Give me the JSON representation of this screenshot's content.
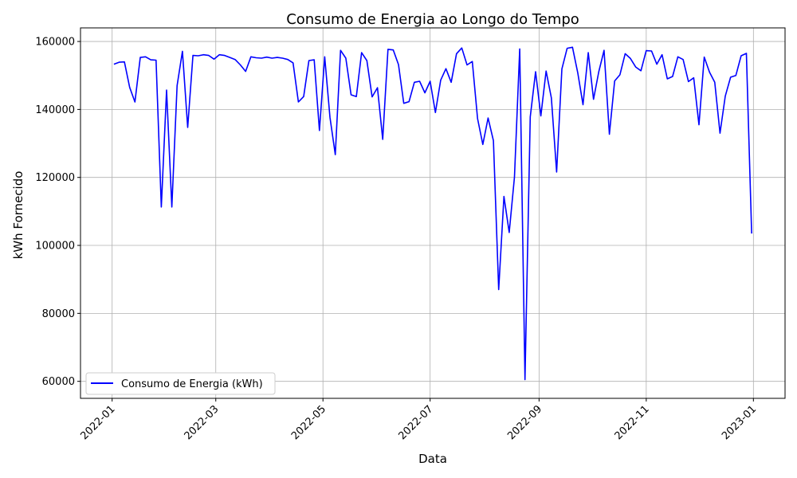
{
  "chart_data": {
    "type": "line",
    "title": "Consumo de Energia ao Longo do Tempo",
    "xlabel": "Data",
    "ylabel": "kWh Fornecido",
    "grid": true,
    "legend_position": "lower-left",
    "x_type": "date",
    "xlim": [
      "2021-12-14",
      "2023-01-19"
    ],
    "ylim": [
      55000,
      164000
    ],
    "x_ticks": [
      "2022-01-01",
      "2022-03-01",
      "2022-05-01",
      "2022-07-01",
      "2022-09-01",
      "2022-11-01",
      "2023-01-01"
    ],
    "x_tick_labels": [
      "2022-01",
      "2022-03",
      "2022-05",
      "2022-07",
      "2022-09",
      "2022-11",
      "2023-01"
    ],
    "y_ticks": [
      60000,
      80000,
      100000,
      120000,
      140000,
      160000
    ],
    "y_tick_labels": [
      "60000",
      "80000",
      "100000",
      "120000",
      "140000",
      "160000"
    ],
    "series": [
      {
        "name": "Consumo de Energia (kWh)",
        "color": "#0000ff",
        "x": [
          "2022-01-02",
          "2022-01-05",
          "2022-01-08",
          "2022-01-11",
          "2022-01-14",
          "2022-01-17",
          "2022-01-20",
          "2022-01-23",
          "2022-01-26",
          "2022-01-29",
          "2022-02-01",
          "2022-02-04",
          "2022-02-07",
          "2022-02-10",
          "2022-02-13",
          "2022-02-16",
          "2022-02-19",
          "2022-02-22",
          "2022-02-25",
          "2022-02-28",
          "2022-03-03",
          "2022-03-06",
          "2022-03-09",
          "2022-03-12",
          "2022-03-15",
          "2022-03-18",
          "2022-03-21",
          "2022-03-24",
          "2022-03-27",
          "2022-03-30",
          "2022-04-02",
          "2022-04-05",
          "2022-04-08",
          "2022-04-11",
          "2022-04-14",
          "2022-04-17",
          "2022-04-20",
          "2022-04-23",
          "2022-04-26",
          "2022-04-29",
          "2022-05-02",
          "2022-05-05",
          "2022-05-08",
          "2022-05-11",
          "2022-05-14",
          "2022-05-17",
          "2022-05-20",
          "2022-05-23",
          "2022-05-26",
          "2022-05-29",
          "2022-06-01",
          "2022-06-04",
          "2022-06-07",
          "2022-06-10",
          "2022-06-13",
          "2022-06-16",
          "2022-06-19",
          "2022-06-22",
          "2022-06-25",
          "2022-06-28",
          "2022-07-01",
          "2022-07-04",
          "2022-07-07",
          "2022-07-10",
          "2022-07-13",
          "2022-07-16",
          "2022-07-19",
          "2022-07-22",
          "2022-07-25",
          "2022-07-28",
          "2022-07-31",
          "2022-08-03",
          "2022-08-06",
          "2022-08-09",
          "2022-08-12",
          "2022-08-15",
          "2022-08-18",
          "2022-08-21",
          "2022-08-24",
          "2022-08-27",
          "2022-08-30",
          "2022-09-02",
          "2022-09-05",
          "2022-09-08",
          "2022-09-11",
          "2022-09-14",
          "2022-09-17",
          "2022-09-20",
          "2022-09-23",
          "2022-09-26",
          "2022-09-29",
          "2022-10-02",
          "2022-10-05",
          "2022-10-08",
          "2022-10-11",
          "2022-10-14",
          "2022-10-17",
          "2022-10-20",
          "2022-10-23",
          "2022-10-26",
          "2022-10-29",
          "2022-11-01",
          "2022-11-04",
          "2022-11-07",
          "2022-11-10",
          "2022-11-13",
          "2022-11-16",
          "2022-11-19",
          "2022-11-22",
          "2022-11-25",
          "2022-11-28",
          "2022-12-01",
          "2022-12-04",
          "2022-12-07",
          "2022-12-10",
          "2022-12-13",
          "2022-12-16",
          "2022-12-19",
          "2022-12-22",
          "2022-12-25",
          "2022-12-28",
          "2022-12-31"
        ],
        "y": [
          153300,
          153900,
          154000,
          146500,
          142200,
          155300,
          155500,
          154600,
          154500,
          111300,
          145700,
          111300,
          147000,
          157100,
          134700,
          155900,
          155800,
          156100,
          155900,
          154800,
          156100,
          155900,
          155300,
          154700,
          153100,
          151200,
          155500,
          155200,
          155100,
          155400,
          155100,
          155300,
          155100,
          154700,
          153700,
          142200,
          143800,
          154400,
          154600,
          133800,
          155500,
          137700,
          126700,
          157400,
          155100,
          144300,
          143800,
          156700,
          154400,
          143700,
          146400,
          131200,
          157700,
          157500,
          153200,
          141800,
          142300,
          148000,
          148300,
          144900,
          148300,
          139100,
          148600,
          152000,
          148000,
          156400,
          158100,
          153100,
          154100,
          137300,
          129700,
          137500,
          130800,
          87000,
          114400,
          103800,
          120100,
          157800,
          60500,
          137800,
          151100,
          138100,
          151300,
          143400,
          121600,
          151900,
          158000,
          158300,
          150800,
          141400,
          156700,
          143000,
          151100,
          157400,
          132700,
          148400,
          150200,
          156400,
          155000,
          152500,
          151400,
          157300,
          157200,
          153300,
          156100,
          149000,
          149700,
          155500,
          154700,
          148200,
          149300,
          135500,
          155400,
          151000,
          148000,
          133000,
          143900,
          149500,
          150000,
          155800,
          156500,
          103500
        ]
      }
    ]
  }
}
